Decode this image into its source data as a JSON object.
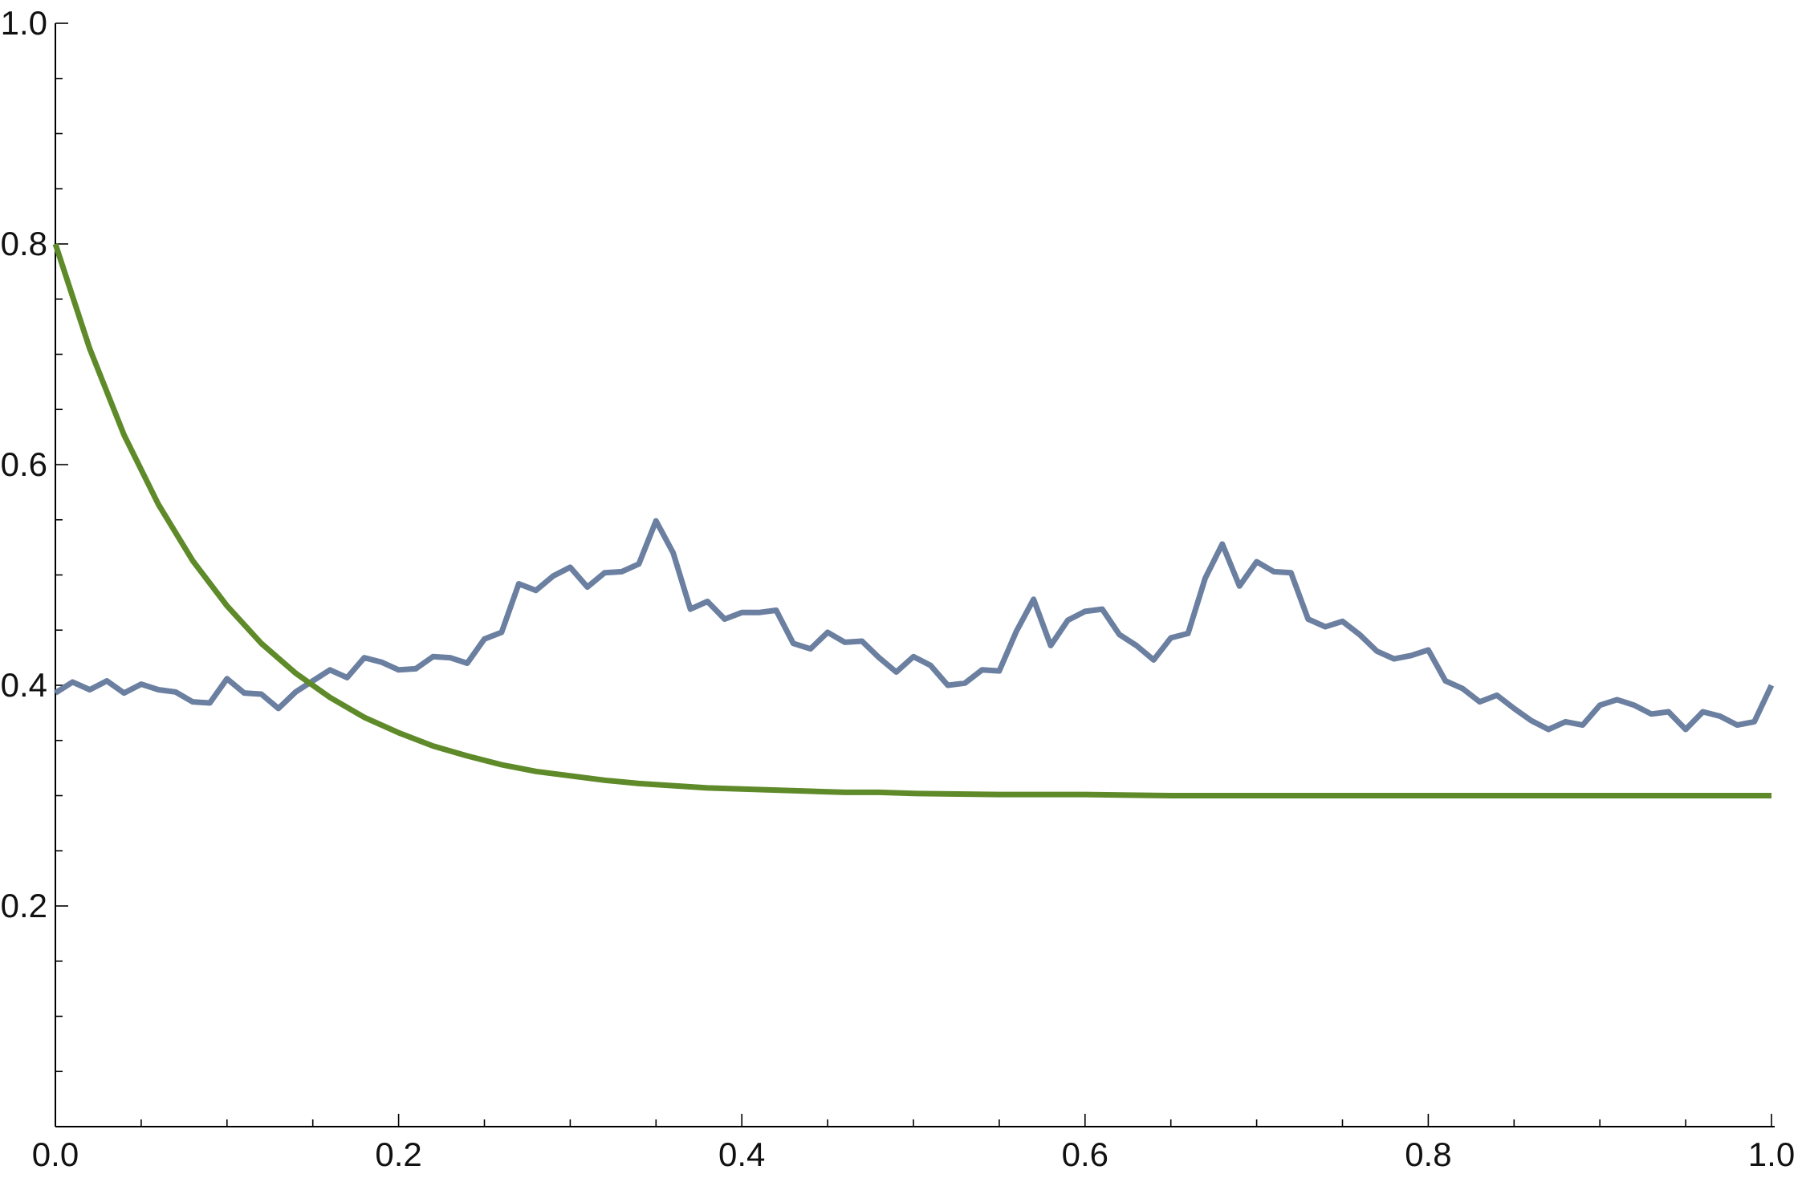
{
  "chart_data": {
    "type": "line",
    "title": "",
    "xlabel": "",
    "ylabel": "",
    "xlim": [
      0,
      1
    ],
    "ylim": [
      0,
      1
    ],
    "x_ticks": [
      0.0,
      0.2,
      0.4,
      0.6,
      0.8,
      1.0
    ],
    "x_tick_labels": [
      "0.0",
      "0.2",
      "0.4",
      "0.6",
      "0.8",
      "1.0"
    ],
    "x_minor_step": 0.05,
    "y_ticks": [
      0.2,
      0.4,
      0.6,
      0.8,
      1.0
    ],
    "y_tick_labels": [
      "0.2",
      "0.4",
      "0.6",
      "0.8",
      "1.0"
    ],
    "y_minor_step": 0.05,
    "grid": false,
    "series": [
      {
        "color": "#6b7fa0",
        "x": [
          0,
          0.01,
          0.02,
          0.03,
          0.04,
          0.05,
          0.06,
          0.07,
          0.08,
          0.09,
          0.1,
          0.11,
          0.12,
          0.13,
          0.14,
          0.15,
          0.16,
          0.17,
          0.18,
          0.19,
          0.2,
          0.21,
          0.22,
          0.23,
          0.24,
          0.25,
          0.26,
          0.27,
          0.28,
          0.29,
          0.3,
          0.31,
          0.32,
          0.33,
          0.34,
          0.35,
          0.36,
          0.37,
          0.38,
          0.39,
          0.4,
          0.41,
          0.42,
          0.43,
          0.44,
          0.45,
          0.46,
          0.47,
          0.48,
          0.49,
          0.5,
          0.51,
          0.52,
          0.53,
          0.54,
          0.55,
          0.56,
          0.57,
          0.58,
          0.59,
          0.6,
          0.61,
          0.62,
          0.63,
          0.64,
          0.65,
          0.66,
          0.67,
          0.68,
          0.69,
          0.7,
          0.71,
          0.72,
          0.73,
          0.74,
          0.75,
          0.76,
          0.77,
          0.78,
          0.79,
          0.8,
          0.81,
          0.82,
          0.83,
          0.84,
          0.85,
          0.86,
          0.87,
          0.88,
          0.89,
          0.9,
          0.91,
          0.92,
          0.93,
          0.94,
          0.95,
          0.96,
          0.97,
          0.98,
          0.99,
          1.0
        ],
        "y": [
          0.393,
          0.403,
          0.396,
          0.404,
          0.393,
          0.401,
          0.396,
          0.394,
          0.385,
          0.384,
          0.406,
          0.393,
          0.392,
          0.379,
          0.394,
          0.404,
          0.414,
          0.407,
          0.425,
          0.421,
          0.414,
          0.415,
          0.426,
          0.425,
          0.42,
          0.442,
          0.448,
          0.492,
          0.486,
          0.499,
          0.507,
          0.489,
          0.502,
          0.503,
          0.51,
          0.549,
          0.52,
          0.469,
          0.476,
          0.46,
          0.466,
          0.466,
          0.468,
          0.438,
          0.433,
          0.448,
          0.439,
          0.44,
          0.425,
          0.412,
          0.426,
          0.418,
          0.4,
          0.402,
          0.414,
          0.413,
          0.449,
          0.478,
          0.436,
          0.459,
          0.467,
          0.469,
          0.446,
          0.436,
          0.423,
          0.443,
          0.447,
          0.497,
          0.528,
          0.49,
          0.512,
          0.503,
          0.502,
          0.46,
          0.453,
          0.458,
          0.446,
          0.431,
          0.424,
          0.427,
          0.432,
          0.404,
          0.397,
          0.385,
          0.391,
          0.379,
          0.368,
          0.36,
          0.367,
          0.364,
          0.382,
          0.387,
          0.382,
          0.374,
          0.376,
          0.36,
          0.376,
          0.372,
          0.364,
          0.367,
          0.4
        ]
      },
      {
        "color": "#5f8a2a",
        "x": [
          0,
          0.02,
          0.04,
          0.06,
          0.08,
          0.1,
          0.12,
          0.14,
          0.16,
          0.18,
          0.2,
          0.22,
          0.24,
          0.26,
          0.28,
          0.3,
          0.32,
          0.34,
          0.36,
          0.38,
          0.4,
          0.42,
          0.44,
          0.46,
          0.48,
          0.5,
          0.55,
          0.6,
          0.65,
          0.7,
          0.75,
          0.8,
          0.85,
          0.9,
          0.95,
          1.0
        ],
        "y": [
          0.8,
          0.705,
          0.627,
          0.564,
          0.513,
          0.472,
          0.438,
          0.411,
          0.389,
          0.371,
          0.357,
          0.345,
          0.336,
          0.328,
          0.322,
          0.318,
          0.314,
          0.311,
          0.309,
          0.307,
          0.306,
          0.305,
          0.304,
          0.303,
          0.303,
          0.302,
          0.301,
          0.301,
          0.3,
          0.3,
          0.3,
          0.3,
          0.3,
          0.3,
          0.3,
          0.3
        ]
      }
    ]
  }
}
